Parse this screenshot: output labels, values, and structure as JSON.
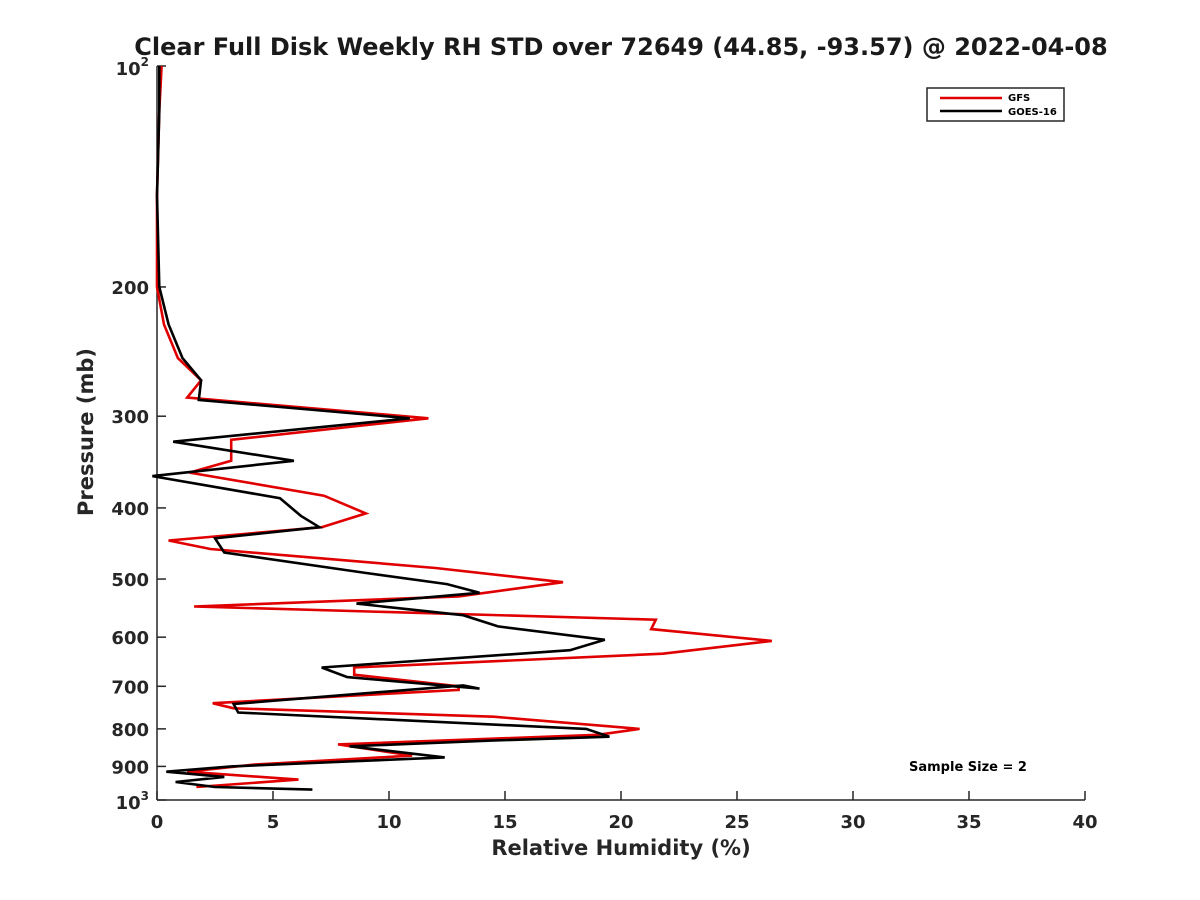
{
  "chart_data": {
    "type": "line",
    "title": "Clear Full Disk Weekly RH STD over 72649 (44.85, -93.57) @ 2022-04-08",
    "xlabel": "Relative Humidity (%)",
    "ylabel": "Pressure (mb)",
    "xlim": [
      0,
      40
    ],
    "ylim": [
      100,
      1000
    ],
    "yscale": "log",
    "y_reversed": true,
    "x_ticks": [
      0,
      5,
      10,
      15,
      20,
      25,
      30,
      35,
      40
    ],
    "x_tick_labels": [
      "0",
      "5",
      "10",
      "15",
      "20",
      "25",
      "30",
      "35",
      "40"
    ],
    "y_ticks": [
      {
        "value": 100,
        "base": "10",
        "exp": "2"
      },
      {
        "value": 200,
        "label": "200"
      },
      {
        "value": 300,
        "label": "300"
      },
      {
        "value": 400,
        "label": "400"
      },
      {
        "value": 500,
        "label": "500"
      },
      {
        "value": 600,
        "label": "600"
      },
      {
        "value": 700,
        "label": "700"
      },
      {
        "value": 800,
        "label": "800"
      },
      {
        "value": 900,
        "label": "900"
      },
      {
        "value": 1000,
        "base": "10",
        "exp": "3"
      }
    ],
    "grid": false,
    "legend_position": "top-right",
    "annotation": "Sample Size = 2",
    "series": [
      {
        "name": "GFS",
        "color": "#e00000",
        "points": [
          [
            0.2,
            100
          ],
          [
            0.1,
            115
          ],
          [
            0.0,
            150
          ],
          [
            0.0,
            200
          ],
          [
            0.3,
            225
          ],
          [
            0.9,
            250
          ],
          [
            1.9,
            268
          ],
          [
            1.3,
            283
          ],
          [
            11.7,
            302
          ],
          [
            3.2,
            323
          ],
          [
            3.2,
            345
          ],
          [
            1.4,
            358
          ],
          [
            7.2,
            385
          ],
          [
            9.0,
            407
          ],
          [
            7.1,
            425
          ],
          [
            0.5,
            443
          ],
          [
            2.3,
            455
          ],
          [
            12.0,
            483
          ],
          [
            17.5,
            505
          ],
          [
            13.0,
            528
          ],
          [
            1.6,
            545
          ],
          [
            21.5,
            568
          ],
          [
            21.3,
            585
          ],
          [
            26.5,
            607
          ],
          [
            21.8,
            632
          ],
          [
            8.5,
            660
          ],
          [
            8.5,
            675
          ],
          [
            13.0,
            700
          ],
          [
            13.0,
            708
          ],
          [
            2.4,
            738
          ],
          [
            3.3,
            750
          ],
          [
            14.5,
            770
          ],
          [
            20.8,
            800
          ],
          [
            19.0,
            815
          ],
          [
            7.8,
            840
          ],
          [
            11.0,
            870
          ],
          [
            4.2,
            895
          ],
          [
            1.3,
            915
          ],
          [
            6.1,
            938
          ],
          [
            1.7,
            960
          ]
        ]
      },
      {
        "name": "GOES-16",
        "color": "#000000",
        "points": [
          [
            0.1,
            100
          ],
          [
            0.1,
            115
          ],
          [
            0.0,
            150
          ],
          [
            0.1,
            200
          ],
          [
            0.5,
            225
          ],
          [
            1.1,
            250
          ],
          [
            1.9,
            268
          ],
          [
            1.8,
            285
          ],
          [
            10.9,
            302
          ],
          [
            0.7,
            325
          ],
          [
            5.9,
            345
          ],
          [
            -0.2,
            362
          ],
          [
            5.3,
            388
          ],
          [
            6.2,
            410
          ],
          [
            7.0,
            425
          ],
          [
            2.5,
            440
          ],
          [
            2.9,
            460
          ],
          [
            8.9,
            490
          ],
          [
            12.5,
            508
          ],
          [
            13.9,
            522
          ],
          [
            8.6,
            540
          ],
          [
            13.2,
            560
          ],
          [
            14.7,
            580
          ],
          [
            19.3,
            605
          ],
          [
            17.8,
            625
          ],
          [
            7.1,
            660
          ],
          [
            8.2,
            680
          ],
          [
            13.9,
            705
          ],
          [
            13.2,
            698
          ],
          [
            3.3,
            740
          ],
          [
            3.5,
            760
          ],
          [
            18.5,
            800
          ],
          [
            19.5,
            820
          ],
          [
            14.4,
            830
          ],
          [
            8.3,
            845
          ],
          [
            12.4,
            875
          ],
          [
            3.2,
            900
          ],
          [
            0.4,
            915
          ],
          [
            2.9,
            930
          ],
          [
            0.8,
            945
          ],
          [
            2.5,
            960
          ],
          [
            6.7,
            968
          ]
        ]
      }
    ]
  }
}
